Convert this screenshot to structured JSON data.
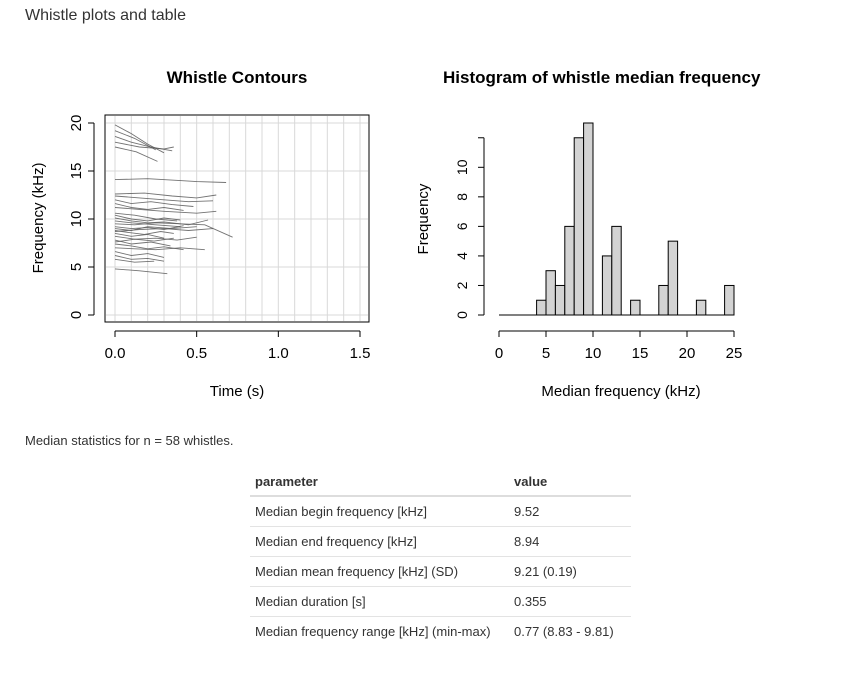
{
  "page": {
    "heading": "Whistle plots and table",
    "caption": "Median statistics for n = 58 whistles."
  },
  "chart_data": [
    {
      "type": "line",
      "title": "Whistle Contours",
      "xlabel": "Time (s)",
      "ylabel": "Frequency (kHz)",
      "xlim": [
        0,
        1.5
      ],
      "ylim": [
        0,
        20
      ],
      "xticks": [
        "0.0",
        "0.5",
        "1.0",
        "1.5"
      ],
      "yticks": [
        "0",
        "5",
        "10",
        "15",
        "20"
      ],
      "grid": true,
      "line_color": "#5a5a5a",
      "series": [
        {
          "x": [
            0,
            0.1,
            0.2,
            0.3
          ],
          "y": [
            19.8,
            18.9,
            17.8,
            16.9
          ]
        },
        {
          "x": [
            0,
            0.12,
            0.25
          ],
          "y": [
            19.2,
            18.4,
            17.2
          ]
        },
        {
          "x": [
            0,
            0.1,
            0.22,
            0.35
          ],
          "y": [
            18.6,
            18.0,
            17.5,
            17.1
          ]
        },
        {
          "x": [
            0,
            0.15,
            0.3,
            0.36
          ],
          "y": [
            18.0,
            17.5,
            17.3,
            17.5
          ]
        },
        {
          "x": [
            0,
            0.13,
            0.26
          ],
          "y": [
            17.5,
            17.0,
            16.0
          ]
        },
        {
          "x": [
            0,
            0.2,
            0.4,
            0.5,
            0.68
          ],
          "y": [
            14.1,
            14.2,
            14.0,
            13.9,
            13.8
          ]
        },
        {
          "x": [
            0,
            0.18,
            0.35,
            0.5,
            0.62
          ],
          "y": [
            12.6,
            12.7,
            12.4,
            12.2,
            12.5
          ]
        },
        {
          "x": [
            0,
            0.15,
            0.3,
            0.45,
            0.6
          ],
          "y": [
            12.4,
            12.2,
            12.0,
            11.8,
            11.9
          ]
        },
        {
          "x": [
            0,
            0.1,
            0.22,
            0.35,
            0.48
          ],
          "y": [
            12.0,
            11.6,
            11.8,
            11.5,
            11.3
          ]
        },
        {
          "x": [
            0,
            0.1,
            0.2,
            0.3,
            0.42
          ],
          "y": [
            11.6,
            11.2,
            11.0,
            11.2,
            10.9
          ]
        },
        {
          "x": [
            0,
            0.15,
            0.3,
            0.5,
            0.62
          ],
          "y": [
            11.2,
            11.0,
            10.8,
            10.6,
            10.8
          ]
        },
        {
          "x": [
            0,
            0.12,
            0.25,
            0.38
          ],
          "y": [
            10.6,
            10.4,
            10.0,
            9.8
          ]
        },
        {
          "x": [
            0,
            0.1,
            0.2,
            0.3,
            0.45,
            0.57
          ],
          "y": [
            10.1,
            9.8,
            9.6,
            9.7,
            9.4,
            9.9
          ]
        },
        {
          "x": [
            0,
            0.12,
            0.25,
            0.4,
            0.55,
            0.72
          ],
          "y": [
            9.5,
            9.4,
            9.6,
            9.5,
            9.4,
            8.1
          ]
        },
        {
          "x": [
            0,
            0.1,
            0.2,
            0.3,
            0.42
          ],
          "y": [
            9.2,
            9.0,
            9.1,
            8.9,
            9.3
          ]
        },
        {
          "x": [
            0,
            0.1,
            0.2,
            0.35,
            0.5
          ],
          "y": [
            9.0,
            8.8,
            9.2,
            9.0,
            9.2
          ]
        },
        {
          "x": [
            0,
            0.08,
            0.18,
            0.28,
            0.36
          ],
          "y": [
            8.8,
            8.6,
            8.4,
            8.7,
            8.5
          ]
        },
        {
          "x": [
            0,
            0.1,
            0.2,
            0.3
          ],
          "y": [
            8.5,
            8.2,
            8.4,
            8.0
          ]
        },
        {
          "x": [
            0,
            0.12,
            0.25,
            0.38,
            0.5
          ],
          "y": [
            8.2,
            7.9,
            8.0,
            7.8,
            8.1
          ]
        },
        {
          "x": [
            0,
            0.1,
            0.22,
            0.34
          ],
          "y": [
            7.8,
            7.4,
            7.6,
            7.2
          ]
        },
        {
          "x": [
            0,
            0.1,
            0.2,
            0.3,
            0.42
          ],
          "y": [
            7.4,
            7.2,
            6.9,
            7.1,
            6.8
          ]
        },
        {
          "x": [
            0,
            0.12,
            0.25,
            0.4,
            0.55
          ],
          "y": [
            7.0,
            6.9,
            6.8,
            7.0,
            6.8
          ]
        },
        {
          "x": [
            0,
            0.1,
            0.2,
            0.3
          ],
          "y": [
            6.6,
            6.2,
            6.4,
            6.0
          ]
        },
        {
          "x": [
            0,
            0.1,
            0.2,
            0.3
          ],
          "y": [
            6.2,
            5.8,
            5.9,
            5.6
          ]
        },
        {
          "x": [
            0,
            0.12,
            0.24
          ],
          "y": [
            5.8,
            5.5,
            5.6
          ]
        },
        {
          "x": [
            0,
            0.15,
            0.32
          ],
          "y": [
            4.8,
            4.6,
            4.3
          ]
        },
        {
          "x": [
            0,
            0.1,
            0.25,
            0.4
          ],
          "y": [
            9.8,
            9.6,
            9.4,
            9.2
          ]
        },
        {
          "x": [
            0,
            0.15,
            0.3,
            0.45,
            0.6
          ],
          "y": [
            8.7,
            8.9,
            9.0,
            8.8,
            9.0
          ]
        },
        {
          "x": [
            0,
            0.1,
            0.2,
            0.3,
            0.4
          ],
          "y": [
            10.4,
            10.0,
            9.8,
            10.1,
            9.9
          ]
        },
        {
          "x": [
            0,
            0.12,
            0.24,
            0.36
          ],
          "y": [
            7.6,
            7.9,
            7.7,
            8.0
          ]
        }
      ]
    },
    {
      "type": "bar",
      "title": "Histogram of whistle median frequency",
      "xlabel": "Median frequency (kHz)",
      "ylabel": "Frequency",
      "xlim": [
        0,
        25
      ],
      "ylim": [
        0,
        12
      ],
      "xticks": [
        "0",
        "5",
        "10",
        "15",
        "20",
        "25"
      ],
      "yticks": [
        "0",
        "2",
        "4",
        "6",
        "8",
        "10"
      ],
      "bin_width": 1,
      "bins": [
        {
          "start": 4,
          "count": 1
        },
        {
          "start": 5,
          "count": 3
        },
        {
          "start": 6,
          "count": 2
        },
        {
          "start": 7,
          "count": 6
        },
        {
          "start": 8,
          "count": 12
        },
        {
          "start": 9,
          "count": 13
        },
        {
          "start": 11,
          "count": 4
        },
        {
          "start": 12,
          "count": 6
        },
        {
          "start": 14,
          "count": 1
        },
        {
          "start": 17,
          "count": 2
        },
        {
          "start": 18,
          "count": 5
        },
        {
          "start": 21,
          "count": 1
        },
        {
          "start": 24,
          "count": 2
        }
      ],
      "bar_color": "#d3d3d3"
    }
  ],
  "table": {
    "headers": [
      "parameter",
      "value"
    ],
    "rows": [
      {
        "parameter": "Median begin frequency [kHz]",
        "value": "9.52"
      },
      {
        "parameter": "Median end frequency [kHz]",
        "value": "8.94"
      },
      {
        "parameter": "Median mean frequency [kHz] (SD)",
        "value": "9.21 (0.19)"
      },
      {
        "parameter": "Median duration [s]",
        "value": "0.355"
      },
      {
        "parameter": "Median frequency range [kHz] (min-max)",
        "value": "0.77 (8.83 - 9.81)"
      }
    ]
  }
}
